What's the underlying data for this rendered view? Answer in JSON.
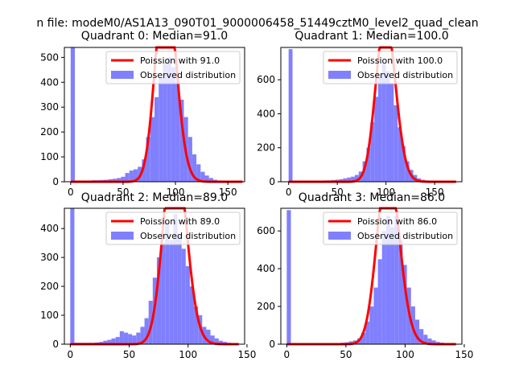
{
  "suptitle": "n file: modeM0/AS1A13_090T01_9000006458_51449cztM0_level2_quad_clean",
  "colors": {
    "fit": "#ff0000",
    "hist": "#8080ff",
    "axes": "#000000"
  },
  "chart_data": [
    {
      "type": "bar",
      "title": "Quadrant 0: Median=91.0",
      "bins": [
        0,
        4,
        8,
        12,
        16,
        20,
        24,
        28,
        32,
        36,
        40,
        44,
        48,
        52,
        56,
        60,
        64,
        68,
        72,
        76,
        80,
        84,
        88,
        92,
        96,
        100,
        104,
        108,
        112,
        116,
        120,
        124,
        128,
        132,
        136,
        140,
        144,
        148,
        152,
        156,
        160,
        164
      ],
      "counts": [
        540,
        5,
        5,
        5,
        5,
        6,
        6,
        7,
        8,
        10,
        12,
        15,
        20,
        35,
        45,
        50,
        60,
        90,
        180,
        260,
        340,
        420,
        480,
        500,
        460,
        400,
        330,
        260,
        180,
        110,
        70,
        40,
        25,
        15,
        8,
        5,
        3,
        2,
        1,
        1,
        0
      ],
      "fit_mean": 91.0,
      "fit_label": "Poission with 91.0",
      "hist_label": "Observed distribution",
      "xlim": [
        -6,
        166
      ],
      "ylim": [
        0,
        540
      ],
      "xticks": [
        0,
        50,
        100,
        150
      ],
      "yticks": [
        0,
        100,
        200,
        300,
        400,
        500
      ]
    },
    {
      "type": "bar",
      "title": "Quadrant 1: Median=100.0",
      "bins": [
        0,
        4,
        8,
        12,
        16,
        20,
        24,
        28,
        32,
        36,
        40,
        44,
        48,
        52,
        56,
        60,
        64,
        68,
        72,
        76,
        80,
        84,
        88,
        92,
        96,
        100,
        104,
        108,
        112,
        116,
        120,
        124,
        128,
        132,
        136,
        140,
        144,
        148,
        152,
        156,
        160,
        164,
        168,
        172
      ],
      "counts": [
        780,
        5,
        5,
        5,
        5,
        5,
        5,
        5,
        5,
        8,
        8,
        10,
        12,
        15,
        20,
        25,
        30,
        40,
        60,
        120,
        200,
        350,
        500,
        620,
        700,
        650,
        580,
        450,
        320,
        210,
        120,
        70,
        40,
        20,
        12,
        8,
        5,
        3,
        2,
        1,
        1,
        1,
        1
      ],
      "fit_mean": 100.0,
      "fit_label": "Poission with 100.0",
      "hist_label": "Observed distribution",
      "xlim": [
        -8,
        178
      ],
      "ylim": [
        0,
        790
      ],
      "xticks": [
        0,
        50,
        100,
        150
      ],
      "yticks": [
        0,
        200,
        400,
        600
      ]
    },
    {
      "type": "bar",
      "title": "Quadrant 2: Median=89.0",
      "bins": [
        0,
        3.5,
        7,
        10.5,
        14,
        17.5,
        21,
        24.5,
        28,
        31.5,
        35,
        38.5,
        42,
        45.5,
        49,
        52.5,
        56,
        59.5,
        63,
        66.5,
        70,
        73.5,
        77,
        80.5,
        84,
        87.5,
        91,
        94.5,
        98,
        101.5,
        105,
        108.5,
        112,
        115.5,
        119,
        122.5,
        126,
        129.5,
        133,
        136.5,
        140,
        143.5
      ],
      "counts": [
        470,
        5,
        5,
        5,
        5,
        5,
        6,
        8,
        12,
        15,
        20,
        25,
        45,
        40,
        35,
        30,
        40,
        60,
        90,
        150,
        230,
        300,
        350,
        420,
        360,
        450,
        380,
        330,
        270,
        200,
        130,
        100,
        60,
        50,
        30,
        20,
        12,
        8,
        5,
        3,
        2
      ],
      "fit_mean": 89.0,
      "fit_label": "Poission with 89.0",
      "hist_label": "Observed distribution",
      "xlim": [
        -5,
        148
      ],
      "ylim": [
        0,
        470
      ],
      "xticks": [
        0,
        50,
        100,
        150
      ],
      "yticks": [
        0,
        100,
        200,
        300,
        400
      ]
    },
    {
      "type": "bar",
      "title": "Quadrant 3: Median=86.0",
      "bins": [
        0,
        3.5,
        7,
        10.5,
        14,
        17.5,
        21,
        24.5,
        28,
        31.5,
        35,
        38.5,
        42,
        45.5,
        49,
        52.5,
        56,
        59.5,
        63,
        66.5,
        70,
        73.5,
        77,
        80.5,
        84,
        87.5,
        91,
        94.5,
        98,
        101.5,
        105,
        108.5,
        112,
        115.5,
        119,
        122.5,
        126,
        129.5,
        133,
        136.5,
        140,
        143.5
      ],
      "counts": [
        710,
        5,
        5,
        5,
        5,
        5,
        5,
        5,
        5,
        5,
        5,
        5,
        5,
        8,
        10,
        15,
        20,
        30,
        60,
        120,
        200,
        300,
        450,
        600,
        680,
        620,
        680,
        550,
        420,
        300,
        200,
        130,
        80,
        50,
        30,
        20,
        12,
        8,
        5,
        3,
        2
      ],
      "fit_mean": 86.0,
      "fit_label": "Poission with 86.0",
      "hist_label": "Observed distribution",
      "xlim": [
        -5,
        148
      ],
      "ylim": [
        0,
        720
      ],
      "xticks": [
        0,
        50,
        100,
        150
      ],
      "yticks": [
        0,
        200,
        400,
        600
      ]
    }
  ]
}
